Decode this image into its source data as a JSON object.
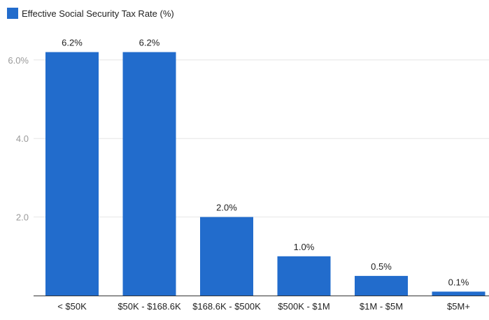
{
  "chart_data": {
    "type": "bar",
    "categories": [
      "< $50K",
      "$50K - $168.6K",
      "$168.6K - $500K",
      "$500K - $1M",
      "$1M - $5M",
      "$5M+"
    ],
    "series": [
      {
        "name": "Effective Social Security Tax Rate (%)",
        "values": [
          6.2,
          6.2,
          2.0,
          1.0,
          0.5,
          0.1
        ],
        "data_labels": [
          "6.2%",
          "6.2%",
          "2.0%",
          "1.0%",
          "0.5%",
          "0.1%"
        ],
        "color": "#226ccc"
      }
    ],
    "ylim": [
      0,
      6.8
    ],
    "yticks": [
      {
        "value": 2.0,
        "label": "2.0"
      },
      {
        "value": 4.0,
        "label": "4.0"
      },
      {
        "value": 6.0,
        "label": "6.0%"
      }
    ],
    "grid": true,
    "legend_position": "top-left",
    "colors": {
      "bar": "#226ccc",
      "grid": "#e6e6e6",
      "axis": "#333333"
    }
  }
}
